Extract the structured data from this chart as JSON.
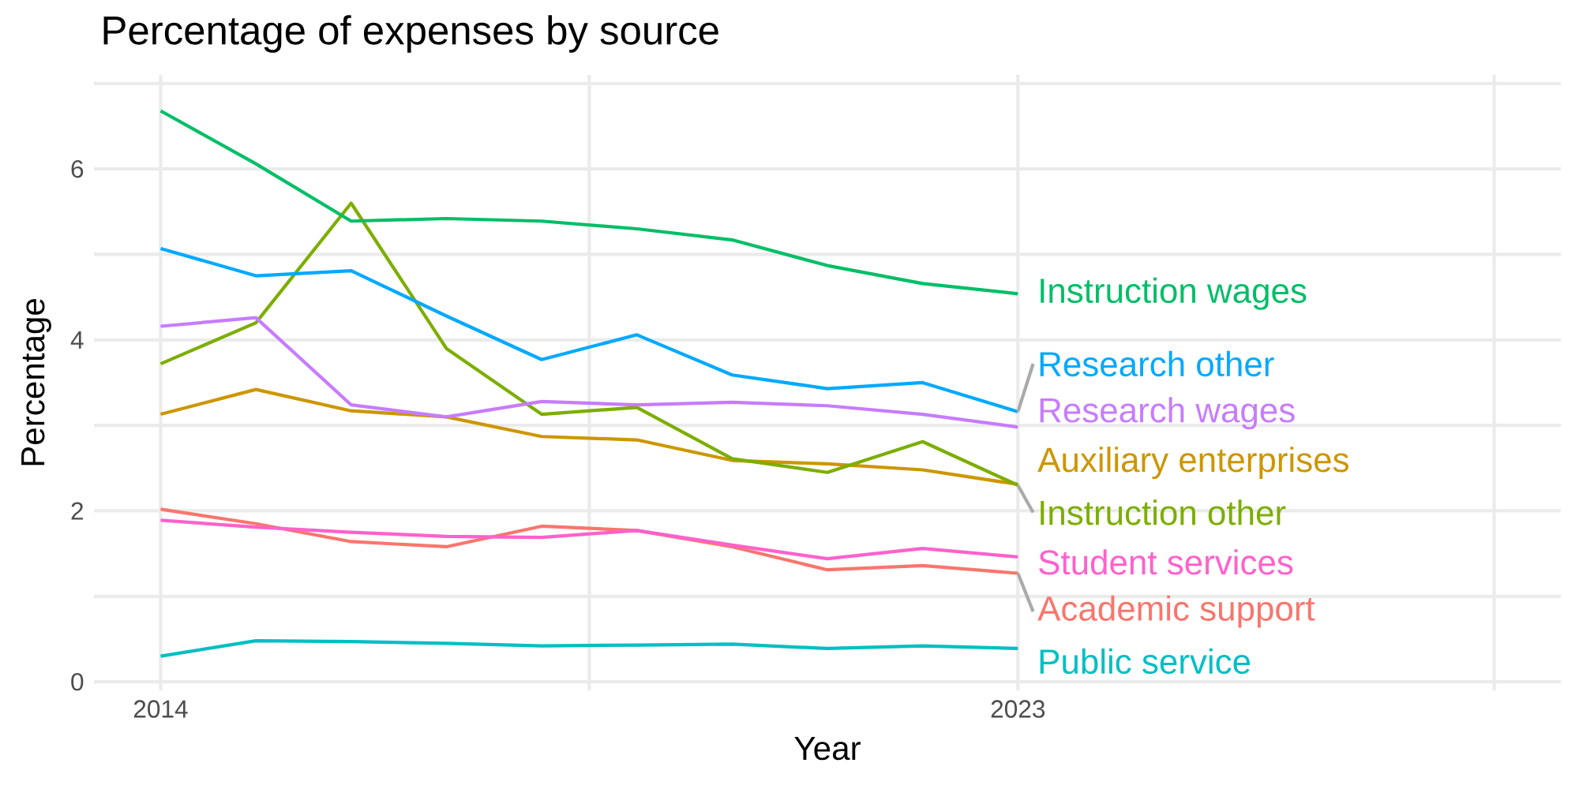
{
  "chart_data": {
    "type": "line",
    "title": "Percentage of expenses by source",
    "xlabel": "Year",
    "ylabel": "Percentage",
    "x": [
      2014,
      2015,
      2016,
      2017,
      2018,
      2019,
      2020,
      2021,
      2022,
      2023
    ],
    "xlim": [
      2013.3,
      2028.7
    ],
    "xticks": [
      2014,
      {
        "value": 2018.5,
        "label": null
      },
      2023,
      {
        "value": 2028,
        "label": null
      }
    ],
    "ylim": [
      -0.1,
      7.1
    ],
    "yticks": [
      0,
      {
        "value": 1,
        "label": null
      },
      2,
      {
        "value": 3,
        "label": null
      },
      4,
      {
        "value": 5,
        "label": null
      },
      6,
      {
        "value": 7,
        "label": null
      }
    ],
    "grid": true,
    "legend": false,
    "marker": "none",
    "line_style": "solid",
    "series": [
      {
        "name": "Academic support",
        "color": "#f8766d",
        "values": [
          2.02,
          1.85,
          1.64,
          1.58,
          1.82,
          1.77,
          1.58,
          1.31,
          1.36,
          1.27
        ]
      },
      {
        "name": "Auxiliary enterprises",
        "color": "#cd9600",
        "values": [
          3.13,
          3.42,
          3.17,
          3.1,
          2.87,
          2.83,
          2.59,
          2.55,
          2.48,
          2.31
        ]
      },
      {
        "name": "Instruction other",
        "color": "#7cae00",
        "values": [
          3.72,
          4.2,
          5.6,
          3.9,
          3.13,
          3.21,
          2.61,
          2.45,
          2.81,
          2.3
        ]
      },
      {
        "name": "Instruction wages",
        "color": "#00be67",
        "values": [
          6.68,
          6.06,
          5.39,
          5.42,
          5.39,
          5.3,
          5.17,
          4.87,
          4.66,
          4.54
        ]
      },
      {
        "name": "Public service",
        "color": "#00bfc4",
        "values": [
          0.3,
          0.48,
          0.47,
          0.45,
          0.42,
          0.43,
          0.44,
          0.39,
          0.42,
          0.39
        ]
      },
      {
        "name": "Research other",
        "color": "#00a9ff",
        "values": [
          5.07,
          4.75,
          4.81,
          4.28,
          3.77,
          4.06,
          3.59,
          3.43,
          3.5,
          3.16
        ]
      },
      {
        "name": "Research wages",
        "color": "#c77cff",
        "values": [
          4.16,
          4.26,
          3.24,
          3.1,
          3.28,
          3.24,
          3.27,
          3.23,
          3.13,
          2.98
        ]
      },
      {
        "name": "Student services",
        "color": "#ff61cc",
        "values": [
          1.89,
          1.81,
          1.75,
          1.7,
          1.69,
          1.77,
          1.6,
          1.44,
          1.56,
          1.46
        ]
      }
    ]
  }
}
